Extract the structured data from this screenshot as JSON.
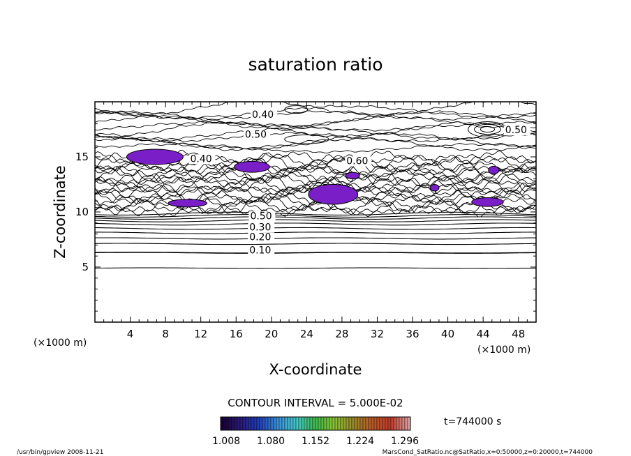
{
  "chart_data": {
    "type": "contour",
    "title": "saturation ratio",
    "xlabel": "X-coordinate",
    "ylabel": "Z-coordinate",
    "xunit": "(×1000 m)",
    "yunit": "(×1000 m)",
    "xlim": [
      0,
      50
    ],
    "ylim": [
      0,
      20
    ],
    "xticks": [
      4,
      8,
      12,
      16,
      20,
      24,
      28,
      32,
      36,
      40,
      44,
      48
    ],
    "yticks": [
      5,
      10,
      15
    ],
    "contour_interval_text": "CONTOUR INTERVAL = 5.000E-02",
    "time_text": "t=744000 s",
    "contour_labels": [
      {
        "text": "0.10",
        "x": 17.5,
        "y": 6.3
      },
      {
        "text": "0.20",
        "x": 17.5,
        "y": 7.5
      },
      {
        "text": "0.30",
        "x": 17.5,
        "y": 8.4
      },
      {
        "text": "0.50",
        "x": 17.6,
        "y": 9.4
      },
      {
        "text": "0.40",
        "x": 17.8,
        "y": 18.6
      },
      {
        "text": "0.50",
        "x": 17.0,
        "y": 16.8
      },
      {
        "text": "0.60",
        "x": 28.5,
        "y": 14.4
      },
      {
        "text": "0.40",
        "x": 10.8,
        "y": 14.6
      },
      {
        "text": "0.50",
        "x": 46.5,
        "y": 17.2
      }
    ],
    "supersaturated_regions": [
      {
        "cx": 6.8,
        "cz": 15.0,
        "rx": 3.2,
        "rz": 0.7
      },
      {
        "cx": 17.8,
        "cz": 14.1,
        "rx": 2.0,
        "rz": 0.5
      },
      {
        "cx": 27.0,
        "cz": 11.6,
        "rx": 2.8,
        "rz": 0.9
      },
      {
        "cx": 10.5,
        "cz": 10.8,
        "rx": 2.2,
        "rz": 0.35
      },
      {
        "cx": 29.2,
        "cz": 13.3,
        "rx": 0.8,
        "rz": 0.3
      },
      {
        "cx": 44.5,
        "cz": 10.9,
        "rx": 1.8,
        "rz": 0.4
      },
      {
        "cx": 45.2,
        "cz": 13.8,
        "rx": 0.6,
        "rz": 0.35
      },
      {
        "cx": 38.5,
        "cz": 12.2,
        "rx": 0.5,
        "rz": 0.3
      }
    ],
    "colorbar": {
      "ticks": [
        "1.008",
        "1.080",
        "1.152",
        "1.224",
        "1.296"
      ],
      "colors": [
        "#1a0033",
        "#2a1a7a",
        "#1e3fb8",
        "#3a8fd8",
        "#44c7c7",
        "#3cb84a",
        "#8ac234",
        "#9a8a2a",
        "#b85a28",
        "#c23a2a",
        "#d8a0a0"
      ]
    },
    "grid": false,
    "legend": "none"
  },
  "footer": {
    "left": "/usr/bin/gpview   2008-11-21",
    "right": "MarsCond_SatRatio.nc@SatRatio,x=0:50000,z=0:20000,t=744000"
  }
}
